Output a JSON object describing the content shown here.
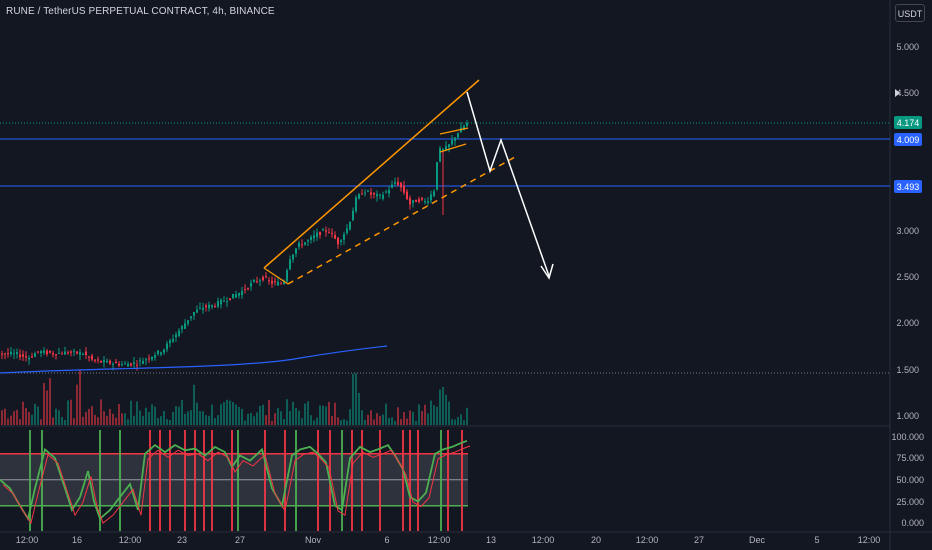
{
  "header": {
    "title": "RUNE / TetherUS PERPETUAL CONTRACT, 4h, BINANCE",
    "currency_button": "USDT"
  },
  "price_axis": {
    "ticks": [
      "5.000",
      "4.500",
      "3.000",
      "2.500",
      "2.000",
      "1.500",
      "1.000"
    ],
    "tags": [
      {
        "label": "4.174",
        "color": "#089981"
      },
      {
        "label": "4.009",
        "color": "#2962ff"
      },
      {
        "label": "3.493",
        "color": "#2962ff"
      }
    ]
  },
  "indicator_axis": {
    "ticks": [
      "100.000",
      "75.000",
      "50.000",
      "25.000",
      "0.000"
    ]
  },
  "time_axis": {
    "ticks": [
      "12:00",
      "16",
      "12:00",
      "23",
      "27",
      "Nov",
      "6",
      "12:00",
      "13",
      "12:00",
      "20",
      "12:00",
      "27",
      "Dec",
      "5",
      "12:00"
    ]
  },
  "chart_data": {
    "type": "candlestick",
    "symbol": "RUNE / TetherUS PERPETUAL CONTRACT",
    "interval": "4h",
    "exchange": "BINANCE",
    "last_price": 4.174,
    "horizontal_levels": [
      4.009,
      3.493
    ],
    "drawings": [
      "orange rising wedge resistance line",
      "orange dashed rising support line",
      "white projected zig-zag arrow pointing down"
    ],
    "oscillator": {
      "range": [
        0,
        100
      ],
      "overbought": 80,
      "oversold": 20
    }
  },
  "colors": {
    "background": "#131722",
    "up_candle": "#089981",
    "down_candle": "#f23645",
    "level_line": "#2962ff",
    "wedge": "#ff9800",
    "moving_average": "#2962ff",
    "oscillator_line": "#4caf50",
    "oscillator_line_2": "#f23645",
    "arrow": "#ffffff"
  }
}
